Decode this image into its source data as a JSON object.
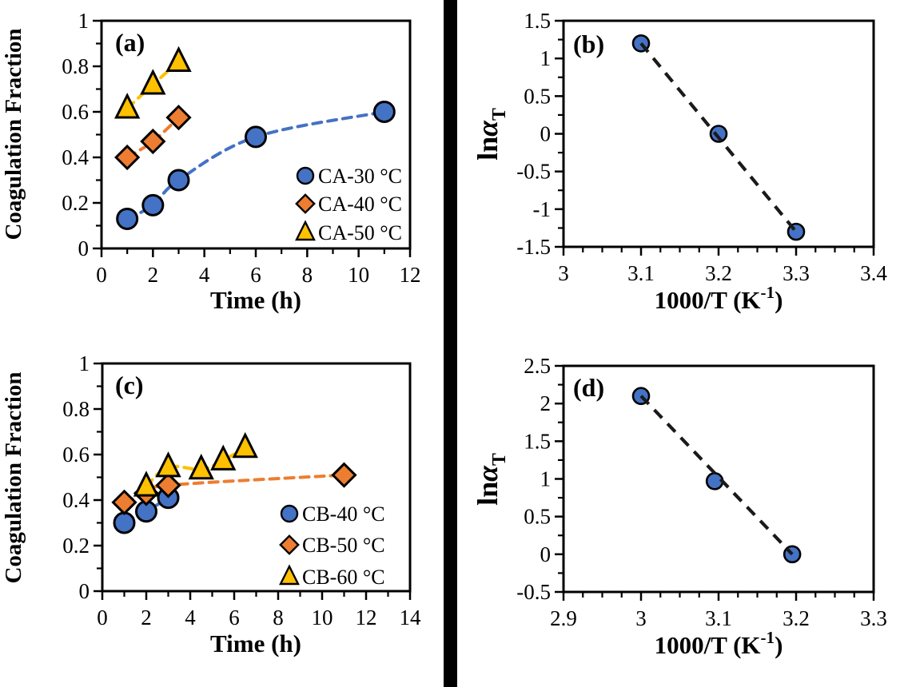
{
  "figure": {
    "background": "#ffffff",
    "divider_color": "#000000",
    "marker_stroke": "#000000",
    "frame_color": "#000000"
  },
  "chart_data": [
    {
      "id": "a",
      "type": "scatter",
      "panel_label": "(a)",
      "xlabel": "Time (h)",
      "ylabel": "Coagulation Fraction",
      "xlim": [
        0,
        12
      ],
      "ylim": [
        0,
        1
      ],
      "x_major_ticks": [
        0,
        2,
        4,
        6,
        8,
        10,
        12
      ],
      "x_tick_labels": [
        "0",
        "2",
        "4",
        "6",
        "8",
        "10",
        "12"
      ],
      "x_minor_step": 1,
      "y_major_ticks": [
        0,
        0.2,
        0.4,
        0.6,
        0.8,
        1
      ],
      "y_tick_labels": [
        "0",
        "0.2",
        "0.4",
        "0.6",
        "0.8",
        "1"
      ],
      "y_minor_step": 0.1,
      "grid": false,
      "legend": {
        "position": "inside lower right",
        "items": [
          "CA-30 °C",
          "CA-40 °C",
          "CA-50 °C"
        ]
      },
      "series": [
        {
          "name": "CA-30 °C",
          "marker": "circle",
          "color": "#4472C4",
          "line_color": "#4472C4",
          "line_style": "dashed",
          "line_shape": "smooth",
          "points": [
            [
              1,
              0.13
            ],
            [
              2,
              0.19
            ],
            [
              3,
              0.3
            ],
            [
              6,
              0.49
            ],
            [
              11,
              0.6
            ]
          ]
        },
        {
          "name": "CA-40 °C",
          "marker": "diamond",
          "color": "#ED7D31",
          "line_color": "#ED7D31",
          "line_style": "dashed",
          "line_shape": "smooth",
          "points": [
            [
              1,
              0.4
            ],
            [
              2,
              0.47
            ],
            [
              3,
              0.575
            ]
          ]
        },
        {
          "name": "CA-50 °C",
          "marker": "triangle",
          "color": "#FFC000",
          "line_color": "#FFC000",
          "line_style": "dashed",
          "line_shape": "smooth",
          "points": [
            [
              1,
              0.615
            ],
            [
              2,
              0.72
            ],
            [
              3,
              0.82
            ]
          ]
        }
      ]
    },
    {
      "id": "b",
      "type": "scatter",
      "panel_label": "(b)",
      "xlabel": "1000/T (K⁻¹)",
      "xlabel_parts": {
        "pre": "1000/T (K",
        "sup": "-1",
        "post": ")"
      },
      "ylabel": "lnαT",
      "ylabel_parts": {
        "pre": "ln",
        "italic": "α",
        "sub": "T"
      },
      "xlim": [
        3,
        3.4
      ],
      "ylim": [
        -1.5,
        1.5
      ],
      "x_major_ticks": [
        3,
        3.1,
        3.2,
        3.3,
        3.4
      ],
      "x_tick_labels": [
        "3",
        "3.1",
        "3.2",
        "3.3",
        "3.4"
      ],
      "x_minor_step": 0.025,
      "y_major_ticks": [
        -1.5,
        -1,
        -0.5,
        0,
        0.5,
        1,
        1.5
      ],
      "y_tick_labels": [
        "-1.5",
        "-1",
        "-0.5",
        "0",
        "0.5",
        "1",
        "1.5"
      ],
      "y_minor_step": 0.25,
      "grid": false,
      "series": [
        {
          "name": "",
          "marker": "circle",
          "color": "#4472C4",
          "line_color": "#1a1a1a",
          "line_style": "dashed",
          "line_shape": "straight",
          "line_on_top": true,
          "points": [
            [
              3.1,
              1.2
            ],
            [
              3.2,
              0.0
            ],
            [
              3.3,
              -1.3
            ]
          ]
        }
      ]
    },
    {
      "id": "c",
      "type": "scatter",
      "panel_label": "(c)",
      "xlabel": "Time (h)",
      "ylabel": "Coagulation Fraction",
      "xlim": [
        0,
        14
      ],
      "ylim": [
        0,
        1
      ],
      "x_major_ticks": [
        0,
        2,
        4,
        6,
        8,
        10,
        12,
        14
      ],
      "x_tick_labels": [
        "0",
        "2",
        "4",
        "6",
        "8",
        "10",
        "12",
        "14"
      ],
      "x_minor_step": 1,
      "y_major_ticks": [
        0,
        0.2,
        0.4,
        0.6,
        0.8,
        1
      ],
      "y_tick_labels": [
        "0",
        "0.2",
        "0.4",
        "0.6",
        "0.8",
        "1"
      ],
      "y_minor_step": 0.1,
      "grid": false,
      "legend": {
        "position": "inside lower right",
        "items": [
          "CB-40 °C",
          "CB-50 °C",
          "CB-60 °C"
        ]
      },
      "series": [
        {
          "name": "CB-40 °C",
          "marker": "circle",
          "color": "#4472C4",
          "line_color": "#4472C4",
          "line_style": "dashed",
          "line_shape": "smooth",
          "points": [
            [
              1,
              0.3
            ],
            [
              2,
              0.35
            ],
            [
              3,
              0.41
            ]
          ]
        },
        {
          "name": "CB-50 °C",
          "marker": "diamond",
          "color": "#ED7D31",
          "line_color": "#ED7D31",
          "line_style": "dashed",
          "line_shape": "smooth",
          "points": [
            [
              1,
              0.39
            ],
            [
              2,
              0.43
            ],
            [
              3,
              0.465
            ],
            [
              11,
              0.51
            ]
          ]
        },
        {
          "name": "CB-60 °C",
          "marker": "triangle",
          "color": "#FFC000",
          "line_color": "#FFC000",
          "line_style": "dashed",
          "line_shape": "smooth",
          "points": [
            [
              2,
              0.46
            ],
            [
              3,
              0.545
            ],
            [
              4.5,
              0.535
            ],
            [
              5.5,
              0.575
            ],
            [
              6.5,
              0.63
            ]
          ]
        }
      ]
    },
    {
      "id": "d",
      "type": "scatter",
      "panel_label": "(d)",
      "xlabel": "1000/T (K⁻¹)",
      "xlabel_parts": {
        "pre": "1000/T (K",
        "sup": "-1",
        "post": ")"
      },
      "ylabel": "lnαT",
      "ylabel_parts": {
        "pre": "ln",
        "italic": "α",
        "sub": "T"
      },
      "xlim": [
        2.9,
        3.3
      ],
      "ylim": [
        -0.5,
        2.5
      ],
      "x_major_ticks": [
        2.9,
        3,
        3.1,
        3.2,
        3.3
      ],
      "x_tick_labels": [
        "2.9",
        "3",
        "3.1",
        "3.2",
        "3.3"
      ],
      "x_minor_step": 0.025,
      "y_major_ticks": [
        -0.5,
        0,
        0.5,
        1,
        1.5,
        2,
        2.5
      ],
      "y_tick_labels": [
        "-0.5",
        "0",
        "0.5",
        "1",
        "1.5",
        "2",
        "2.5"
      ],
      "y_minor_step": 0.25,
      "grid": false,
      "series": [
        {
          "name": "",
          "marker": "circle",
          "color": "#4472C4",
          "line_color": "#1a1a1a",
          "line_style": "dashed",
          "line_shape": "straight",
          "line_on_top": true,
          "points": [
            [
              3.0,
              2.1
            ],
            [
              3.095,
              0.97
            ],
            [
              3.195,
              0.0
            ]
          ]
        }
      ]
    }
  ]
}
